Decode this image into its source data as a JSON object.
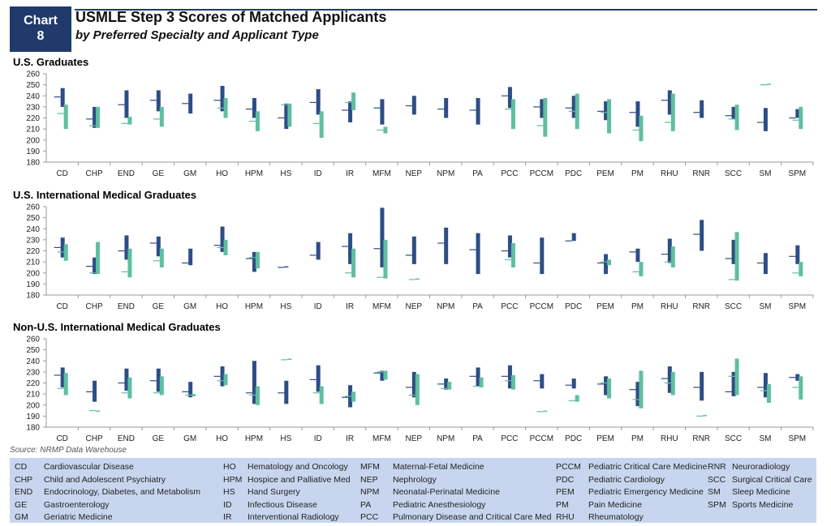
{
  "header": {
    "badge_line1": "Chart",
    "badge_line2": "8",
    "title": "USMLE Step 3 Scores of Matched Applicants",
    "subtitle": "by Preferred Specialty and Applicant Type"
  },
  "colors": {
    "series1": "#2e4d86",
    "series2": "#5fbf9f",
    "axis": "#999999",
    "legend_bg": "#c7d6ee"
  },
  "source": "Source: NRMP Data Warehouse",
  "chart_data": [
    {
      "type": "floating-bar",
      "title": "U.S. Graduates",
      "ylim": [
        180,
        260
      ],
      "yticks": [
        180,
        190,
        200,
        210,
        220,
        230,
        240,
        250,
        260
      ],
      "categories": [
        "CD",
        "CHP",
        "END",
        "GE",
        "GM",
        "HO",
        "HPM",
        "HS",
        "ID",
        "IR",
        "MFM",
        "NEP",
        "NPM",
        "PA",
        "PCC",
        "PCCM",
        "PDC",
        "PEM",
        "PM",
        "RHU",
        "RNR",
        "SCC",
        "SM",
        "SPM"
      ],
      "series": [
        {
          "low": [
            230,
            211,
            220,
            226,
            224,
            226,
            220,
            210,
            223,
            216,
            214,
            223,
            220,
            214,
            229,
            220,
            220,
            218,
            212,
            223,
            220,
            219,
            208,
            220
          ],
          "high": [
            247,
            230,
            245,
            245,
            242,
            249,
            238,
            233,
            246,
            235,
            237,
            240,
            238,
            238,
            248,
            237,
            240,
            235,
            235,
            245,
            236,
            230,
            229,
            228
          ],
          "mark": [
            239,
            219,
            232,
            236,
            233,
            236,
            228,
            220,
            234,
            227,
            229,
            231,
            228,
            227,
            240,
            230,
            229,
            226,
            225,
            236,
            225,
            222,
            216,
            220
          ]
        },
        {
          "low": [
            210,
            211,
            214,
            212,
            null,
            220,
            208,
            212,
            202,
            227,
            206,
            null,
            null,
            null,
            210,
            203,
            210,
            206,
            199,
            208,
            null,
            209,
            250,
            210
          ],
          "high": [
            232,
            230,
            221,
            230,
            null,
            238,
            226,
            233,
            226,
            243,
            212,
            null,
            null,
            null,
            237,
            238,
            242,
            237,
            222,
            242,
            null,
            232,
            251,
            230
          ],
          "mark": [
            224,
            213,
            215,
            219,
            null,
            229,
            217,
            232,
            215,
            234,
            209,
            null,
            null,
            null,
            228,
            213,
            226,
            225,
            209,
            216,
            null,
            219,
            250,
            218
          ]
        }
      ]
    },
    {
      "type": "floating-bar",
      "title": "U.S. International Medical Graduates",
      "ylim": [
        180,
        260
      ],
      "yticks": [
        180,
        190,
        200,
        210,
        220,
        230,
        240,
        250,
        260
      ],
      "categories": [
        "CD",
        "CHP",
        "END",
        "GE",
        "GM",
        "HO",
        "HPM",
        "HS",
        "ID",
        "IR",
        "MFM",
        "NEP",
        "NPM",
        "PA",
        "PCC",
        "PCCM",
        "PDC",
        "PEM",
        "PM",
        "RHU",
        "RNR",
        "SCC",
        "SM",
        "SPM"
      ],
      "series": [
        {
          "low": [
            214,
            199,
            212,
            215,
            207,
            219,
            201,
            205,
            212,
            208,
            205,
            208,
            208,
            199,
            214,
            199,
            229,
            199,
            210,
            209,
            220,
            208,
            199,
            208
          ],
          "high": [
            232,
            214,
            234,
            233,
            222,
            242,
            219,
            206,
            228,
            236,
            259,
            233,
            241,
            236,
            234,
            232,
            236,
            217,
            222,
            231,
            248,
            230,
            218,
            225
          ],
          "mark": [
            223,
            206,
            220,
            227,
            209,
            225,
            213,
            205,
            216,
            224,
            222,
            216,
            227,
            221,
            220,
            209,
            229,
            209,
            219,
            217,
            235,
            213,
            209,
            215
          ]
        },
        {
          "low": [
            211,
            199,
            196,
            205,
            null,
            216,
            204,
            null,
            null,
            196,
            195,
            194,
            null,
            null,
            205,
            null,
            null,
            207,
            197,
            205,
            null,
            193,
            null,
            197
          ],
          "high": [
            226,
            228,
            222,
            222,
            null,
            230,
            219,
            null,
            null,
            222,
            230,
            195,
            null,
            null,
            227,
            null,
            null,
            212,
            210,
            224,
            null,
            237,
            null,
            210
          ],
          "mark": [
            219,
            200,
            201,
            211,
            null,
            223,
            214,
            null,
            null,
            200,
            196,
            194,
            null,
            null,
            212,
            null,
            null,
            210,
            201,
            210,
            null,
            194,
            null,
            200
          ]
        }
      ]
    },
    {
      "type": "floating-bar",
      "title": "Non-U.S. International Medical Graduates",
      "ylim": [
        180,
        260
      ],
      "yticks": [
        180,
        190,
        200,
        210,
        220,
        230,
        240,
        250,
        260
      ],
      "categories": [
        "CD",
        "CHP",
        "END",
        "GE",
        "GM",
        "HO",
        "HPM",
        "HS",
        "ID",
        "IR",
        "MFM",
        "NEP",
        "NPM",
        "PA",
        "PCC",
        "PCCM",
        "PDC",
        "PEM",
        "PM",
        "RHU",
        "RNR",
        "SCC",
        "SM",
        "SPM"
      ],
      "series": [
        {
          "low": [
            216,
            203,
            213,
            212,
            207,
            217,
            201,
            201,
            212,
            198,
            222,
            207,
            214,
            217,
            215,
            215,
            215,
            209,
            199,
            211,
            204,
            208,
            207,
            222
          ],
          "high": [
            234,
            222,
            233,
            233,
            221,
            235,
            240,
            222,
            236,
            218,
            231,
            230,
            224,
            234,
            236,
            228,
            224,
            226,
            221,
            235,
            230,
            230,
            229,
            228
          ],
          "mark": [
            227,
            212,
            220,
            222,
            212,
            226,
            211,
            211,
            223,
            207,
            229,
            216,
            219,
            226,
            226,
            222,
            218,
            219,
            214,
            224,
            216,
            212,
            216,
            225
          ]
        },
        {
          "low": [
            209,
            194,
            206,
            209,
            208,
            218,
            200,
            241,
            201,
            203,
            223,
            200,
            214,
            216,
            214,
            194,
            203,
            206,
            197,
            209,
            190,
            209,
            202,
            205
          ],
          "high": [
            229,
            195,
            225,
            226,
            210,
            228,
            217,
            242,
            217,
            212,
            231,
            228,
            221,
            225,
            227,
            195,
            209,
            224,
            231,
            230,
            191,
            242,
            219,
            226
          ],
          "mark": [
            215,
            195,
            211,
            211,
            209,
            222,
            209,
            241,
            211,
            208,
            230,
            209,
            215,
            217,
            222,
            194,
            204,
            220,
            205,
            220,
            190,
            226,
            213,
            216
          ]
        }
      ]
    }
  ],
  "legend": {
    "col1": [
      [
        "CD",
        "Cardiovascular Disease"
      ],
      [
        "CHP",
        "Child and Adolescent Psychiatry"
      ],
      [
        "END",
        "Endocrinology, Diabetes, and Metabolism"
      ],
      [
        "GE",
        "Gastroenterology"
      ],
      [
        "GM",
        "Geriatric Medicine"
      ]
    ],
    "col2": [
      [
        "HO",
        "Hematology and Oncology"
      ],
      [
        "HPM",
        "Hospice and Palliative Med"
      ],
      [
        "HS",
        "Hand Surgery"
      ],
      [
        "ID",
        "Infectious Disease"
      ],
      [
        "IR",
        "Interventional Radiology"
      ]
    ],
    "col3": [
      [
        "MFM",
        "Maternal-Fetal Medicine"
      ],
      [
        "NEP",
        "Nephrology"
      ],
      [
        "NPM",
        "Neonatal-Perinatal Medicine"
      ],
      [
        "PA",
        "Pediatric Anesthesiology"
      ],
      [
        "PCC",
        "Pulmonary Disease and Critical Care Med"
      ]
    ],
    "col4": [
      [
        "PCCM",
        "Pediatric Critical Care Medicine"
      ],
      [
        "PDC",
        "Pediatric Cardiology"
      ],
      [
        "PEM",
        "Pediatric Emergency Medicine"
      ],
      [
        "PM",
        "Pain Medicine"
      ],
      [
        "RHU",
        "Rheumatology"
      ]
    ],
    "col5": [
      [
        "RNR",
        "Neuroradiology"
      ],
      [
        "SCC",
        "Surgical Critical Care"
      ],
      [
        "SM",
        "Sleep Medicine"
      ],
      [
        "SPM",
        "Sports Medicine"
      ]
    ]
  }
}
